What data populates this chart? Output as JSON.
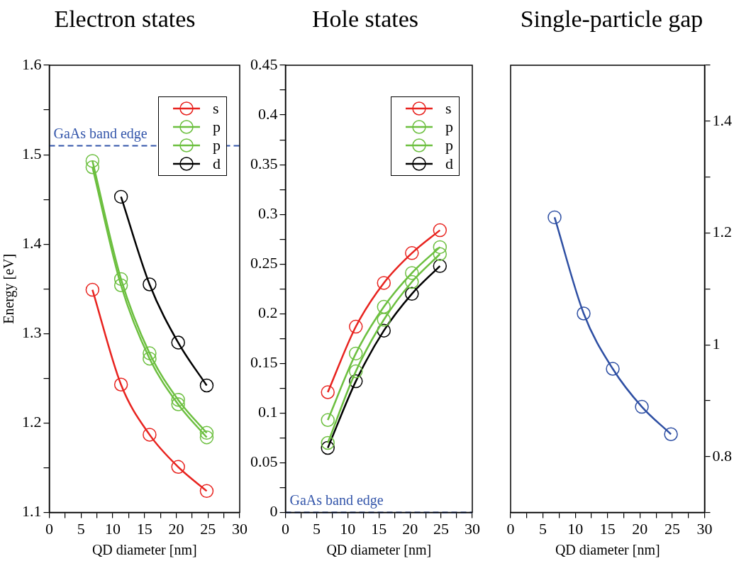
{
  "chart_data": [
    {
      "type": "line",
      "title": "Electron states",
      "xlabel": "QD diameter [nm]",
      "ylabel": "Energy [eV]",
      "x": [
        6.8,
        11.3,
        15.8,
        20.3,
        24.8
      ],
      "series": [
        {
          "name": "s",
          "color": "#e8231f",
          "values": [
            1.349,
            1.243,
            1.187,
            1.151,
            1.124
          ]
        },
        {
          "name": "p",
          "color": "#6cbf3f",
          "values": [
            1.493,
            1.361,
            1.278,
            1.226,
            1.189
          ]
        },
        {
          "name": "p",
          "color": "#6cbf3f",
          "values": [
            1.486,
            1.354,
            1.272,
            1.221,
            1.184
          ]
        },
        {
          "name": "d",
          "color": "#000000",
          "x": [
            11.3,
            15.8,
            20.3,
            24.8
          ],
          "values": [
            1.453,
            1.355,
            1.29,
            1.242
          ]
        }
      ],
      "xlim": [
        0,
        30
      ],
      "xticks": [
        0,
        {
          "value": 2.5,
          "label": null
        },
        5,
        {
          "value": 7.5,
          "label": null
        },
        10,
        {
          "value": 12.5,
          "label": null
        },
        15,
        {
          "value": 17.5,
          "label": null
        },
        20,
        {
          "value": 22.5,
          "label": null
        },
        25,
        {
          "value": 27.5,
          "label": null
        },
        30
      ],
      "ylim": [
        1.1,
        1.6
      ],
      "yticks": [
        1.1,
        {
          "value": 1.15,
          "label": null
        },
        1.2,
        {
          "value": 1.25,
          "label": null
        },
        1.3,
        {
          "value": 1.35,
          "label": null
        },
        1.4,
        {
          "value": 1.45,
          "label": null
        },
        1.5,
        {
          "value": 1.55,
          "label": null
        },
        1.6
      ],
      "legend": "top right",
      "marker": "circle",
      "ref_lines": [
        {
          "axis": "y",
          "value": 1.51,
          "label": "GaAs band edge",
          "color": "#3355aa",
          "line_style": "dashed"
        }
      ]
    },
    {
      "type": "line",
      "title": "Hole states",
      "xlabel": "QD diameter [nm]",
      "x": [
        6.8,
        11.3,
        15.8,
        20.3,
        24.8
      ],
      "series": [
        {
          "name": "s",
          "color": "#e8231f",
          "values": [
            0.121,
            0.187,
            0.231,
            0.261,
            0.284
          ]
        },
        {
          "name": "p",
          "color": "#6cbf3f",
          "values": [
            0.093,
            0.16,
            0.207,
            0.241,
            0.267
          ]
        },
        {
          "name": "p",
          "color": "#6cbf3f",
          "values": [
            0.07,
            0.142,
            0.194,
            0.232,
            0.26
          ]
        },
        {
          "name": "d",
          "color": "#000000",
          "values": [
            0.065,
            0.132,
            0.183,
            0.22,
            0.248
          ]
        }
      ],
      "xlim": [
        0,
        30
      ],
      "xticks": [
        0,
        {
          "value": 2.5,
          "label": null
        },
        5,
        {
          "value": 7.5,
          "label": null
        },
        10,
        {
          "value": 12.5,
          "label": null
        },
        15,
        {
          "value": 17.5,
          "label": null
        },
        20,
        {
          "value": 22.5,
          "label": null
        },
        25,
        {
          "value": 27.5,
          "label": null
        },
        30
      ],
      "ylim": [
        0,
        0.45
      ],
      "yticks": [
        0,
        {
          "value": 0.025,
          "label": null
        },
        0.05,
        {
          "value": 0.075,
          "label": null
        },
        0.1,
        {
          "value": 0.125,
          "label": null
        },
        0.15,
        {
          "value": 0.175,
          "label": null
        },
        0.2,
        {
          "value": 0.225,
          "label": null
        },
        0.25,
        {
          "value": 0.275,
          "label": null
        },
        0.3,
        {
          "value": 0.325,
          "label": null
        },
        0.35,
        {
          "value": 0.375,
          "label": null
        },
        0.4,
        {
          "value": 0.425,
          "label": null
        },
        0.45
      ],
      "legend": "top right",
      "marker": "circle",
      "ref_lines": [
        {
          "axis": "y",
          "value": 0,
          "label": "GaAs band edge",
          "color": "#3355aa",
          "line_style": "dashed"
        }
      ]
    },
    {
      "type": "line",
      "title": "Single-particle gap",
      "xlabel": "QD diameter [nm]",
      "x": [
        6.8,
        11.3,
        15.8,
        20.3,
        24.8
      ],
      "series": [
        {
          "color": "#2e4fa3",
          "axis": "y2",
          "values": [
            1.228,
            1.056,
            0.957,
            0.889,
            0.84
          ]
        }
      ],
      "xlim": [
        0,
        30
      ],
      "xticks": [
        0,
        {
          "value": 2.5,
          "label": null
        },
        5,
        {
          "value": 7.5,
          "label": null
        },
        10,
        {
          "value": 12.5,
          "label": null
        },
        15,
        {
          "value": 17.5,
          "label": null
        },
        20,
        {
          "value": 22.5,
          "label": null
        },
        25,
        {
          "value": 27.5,
          "label": null
        },
        30
      ],
      "y2lim": [
        0.7,
        1.5
      ],
      "y2ticks": [
        {
          "value": 0.7,
          "label": null
        },
        0.8,
        {
          "value": 0.9,
          "label": null
        },
        1,
        {
          "value": 1.1,
          "label": null
        },
        1.2,
        {
          "value": 1.3,
          "label": null
        },
        1.4,
        {
          "value": 1.5,
          "label": null
        }
      ],
      "marker": "circle"
    }
  ]
}
